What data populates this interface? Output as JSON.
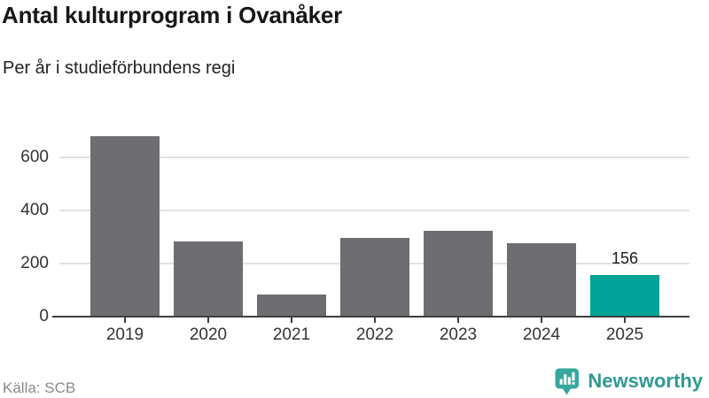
{
  "header": {
    "title": "Antal kulturprogram i Ovanåker",
    "subtitle": "Per år i studieförbundens regi"
  },
  "chart_data": {
    "type": "bar",
    "title": "Antal kulturprogram i Ovanåker",
    "subtitle": "Per år i studieförbundens regi",
    "categories": [
      "2019",
      "2020",
      "2021",
      "2022",
      "2023",
      "2024",
      "2025"
    ],
    "values": [
      680,
      283,
      83,
      298,
      322,
      278,
      156
    ],
    "highlight_category": "2025",
    "highlight_value_label": "156",
    "bar_color": "#6d6d72",
    "highlight_color": "#00a396",
    "xlabel": "",
    "ylabel": "",
    "yticks": [
      0,
      200,
      400,
      600
    ],
    "ylim": [
      0,
      700
    ],
    "grid": true,
    "legend": "none"
  },
  "footer": {
    "source": "Källa: SCB",
    "brand": "Newsworthy"
  },
  "colors": {
    "accent_teal": "#00a396",
    "bar_gray": "#6d6d72",
    "brand_teal": "#2e9b94",
    "gridline": "#e2e2e2",
    "axis": "#3f3f3f"
  }
}
